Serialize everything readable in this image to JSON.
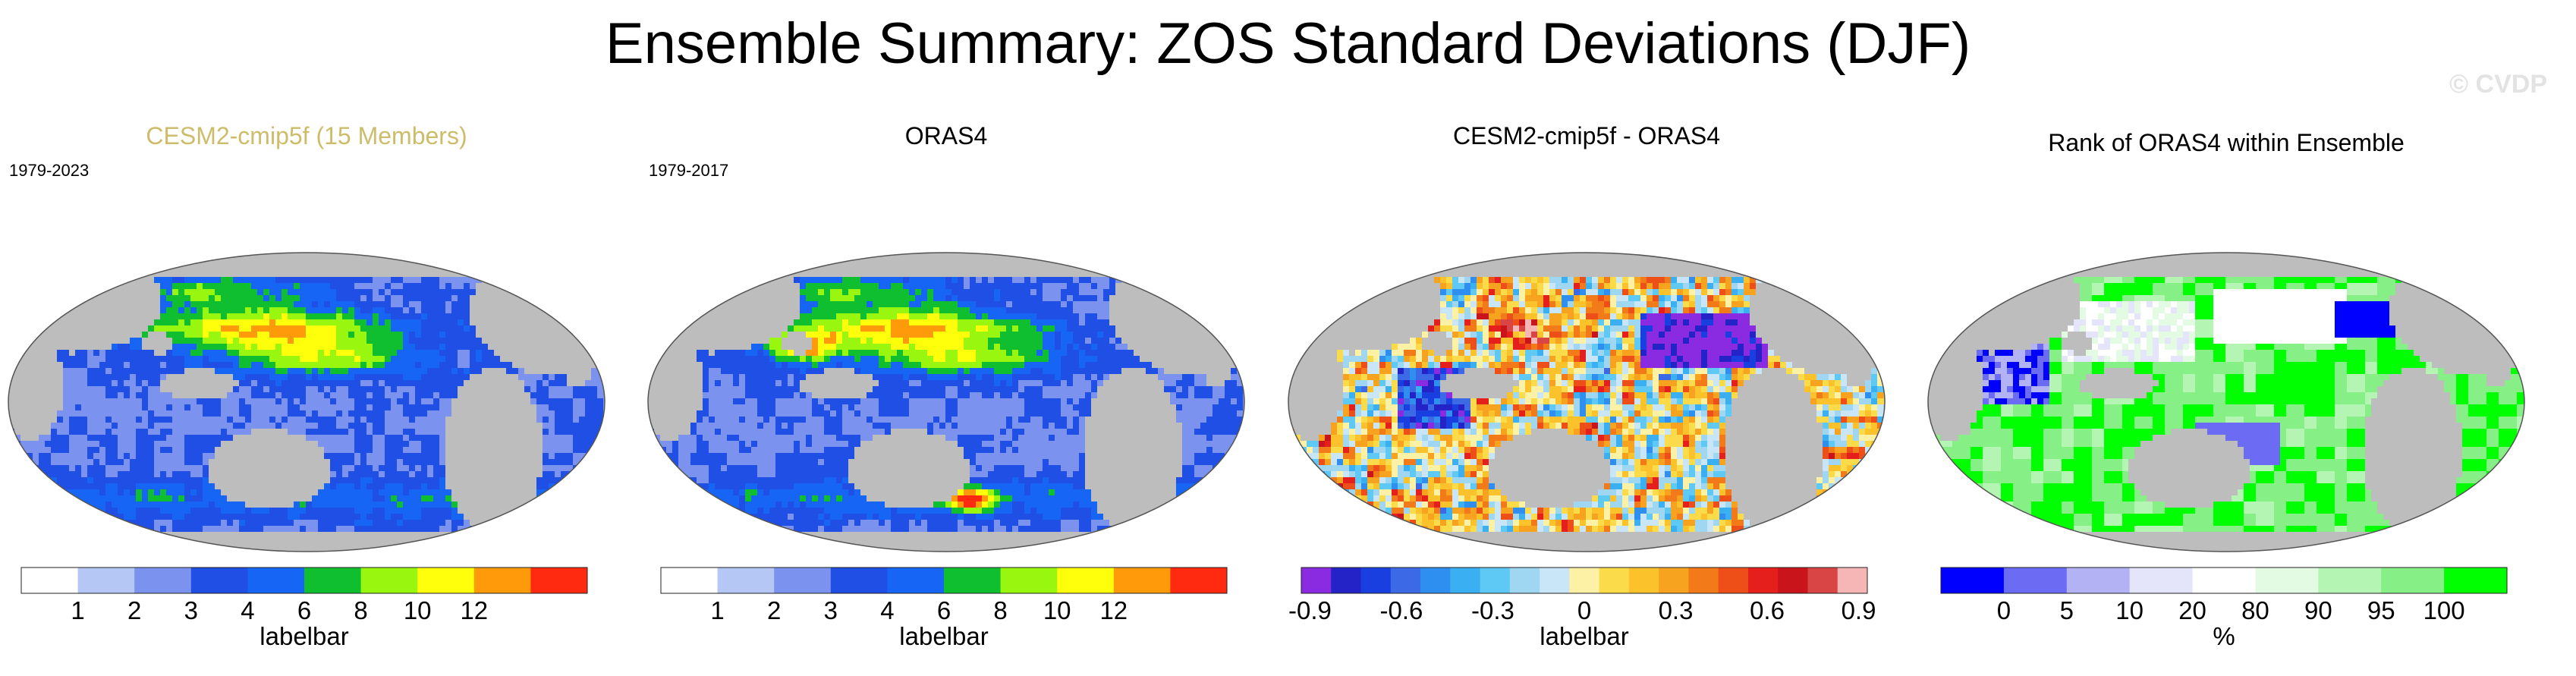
{
  "figure": {
    "title": "Ensemble Summary: ZOS Standard Deviations (DJF)",
    "watermark": "© CVDP"
  },
  "colors": {
    "land": "#bdbdbd",
    "coast": "#555555",
    "title_highlight": "#cdbd6b"
  },
  "chart_data": [
    {
      "type": "heatmap",
      "title": "CESM2-cmip5f (15 Members)",
      "period": "1979-2023",
      "colorbar": {
        "label": "labelbar",
        "ticks": [
          "1",
          "2",
          "3",
          "4",
          "6",
          "8",
          "10",
          "12"
        ],
        "colors": [
          "#ffffff",
          "#b4c7f5",
          "#7b93ee",
          "#1f4fe4",
          "#1665f5",
          "#0fbf2f",
          "#99f60e",
          "#ffff0c",
          "#ff9a0a",
          "#ff2a10"
        ]
      },
      "pattern": "std",
      "variant": 0
    },
    {
      "type": "heatmap",
      "title": "ORAS4",
      "period": "1979-2017",
      "colorbar": {
        "label": "labelbar",
        "ticks": [
          "1",
          "2",
          "3",
          "4",
          "6",
          "8",
          "10",
          "12"
        ],
        "colors": [
          "#ffffff",
          "#b4c7f5",
          "#7b93ee",
          "#1f4fe4",
          "#1665f5",
          "#0fbf2f",
          "#99f60e",
          "#ffff0c",
          "#ff9a0a",
          "#ff2a10"
        ]
      },
      "pattern": "std",
      "variant": 1
    },
    {
      "type": "heatmap",
      "title": "CESM2-cmip5f - ORAS4",
      "period": "",
      "colorbar": {
        "label": "labelbar",
        "ticks": [
          "-0.9",
          "-0.6",
          "-0.3",
          "0",
          "0.3",
          "0.6",
          "0.9"
        ],
        "colors": [
          "#8a2be2",
          "#2323c8",
          "#1a3fe0",
          "#3c69e6",
          "#2f8ff0",
          "#3ab0f2",
          "#5ec9f5",
          "#9fd7f2",
          "#c8e6f7",
          "#fdf1a6",
          "#fbdb4a",
          "#fbc22c",
          "#f7a31f",
          "#f37a18",
          "#ee4f18",
          "#e5201c",
          "#c9141c",
          "#d94545",
          "#f7b6b6"
        ]
      },
      "pattern": "diff",
      "variant": 2
    },
    {
      "type": "heatmap",
      "title": "Rank of ORAS4 within Ensemble",
      "period": "",
      "colorbar": {
        "label": "%",
        "ticks": [
          "0",
          "5",
          "10",
          "20",
          "80",
          "90",
          "95",
          "100"
        ],
        "colors": [
          "#0000ff",
          "#6b6bf3",
          "#b2b2f5",
          "#e4e4fb",
          "#ffffff",
          "#e3fbe3",
          "#b4f5b4",
          "#86ef86",
          "#00ff00"
        ]
      },
      "pattern": "rank",
      "variant": 3
    }
  ]
}
